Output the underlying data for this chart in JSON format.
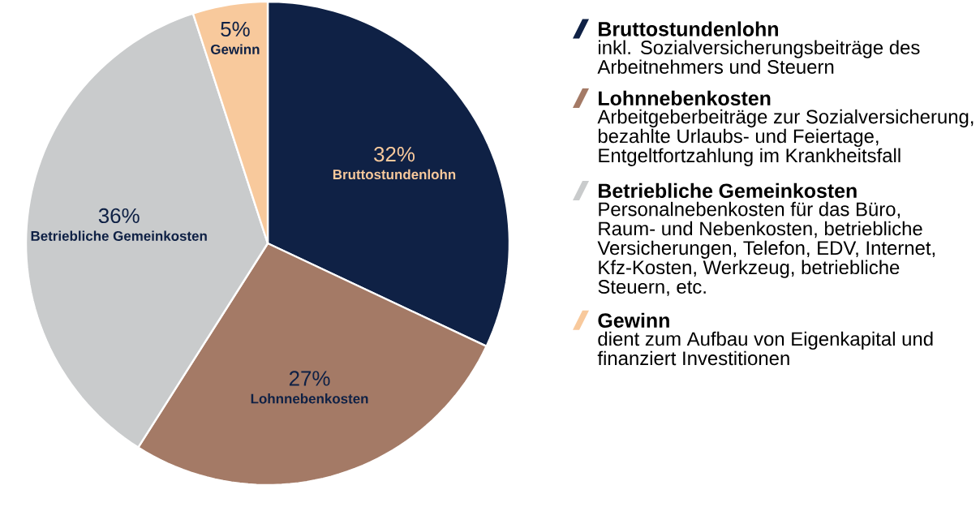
{
  "chart_data": {
    "type": "pie",
    "categories": [
      "Bruttostundenlohn",
      "Lohnnebenkosten",
      "Betriebliche Gemeinkosten",
      "Gewinn"
    ],
    "values": [
      32,
      27,
      36,
      5
    ],
    "value_labels": [
      "32%",
      "27%",
      "36%",
      "5%"
    ],
    "colors": [
      "#0f2145",
      "#a47a66",
      "#c9cbcc",
      "#f8c99c"
    ],
    "legend": "right",
    "annotations": [
      "inkl. Sozialversicherungsbeiträge des Arbeitnehmers und Steuern",
      "Arbeitgeberbeiträge zur Sozialversicherung, bezahlte Urlaubs- und Feiertage, Entgeltfortzahlung im Krankheitsfall",
      "Personalnebenkosten für das Büro, Raum- und Nebenkosten, betriebliche Versicherungen, Telefon, EDV, Internet, Kfz-Kosten, Werkzeug, betriebliche Steuern, etc.",
      "dient zum Aufbau von Eigenkapital und finanziert Investitionen"
    ]
  }
}
